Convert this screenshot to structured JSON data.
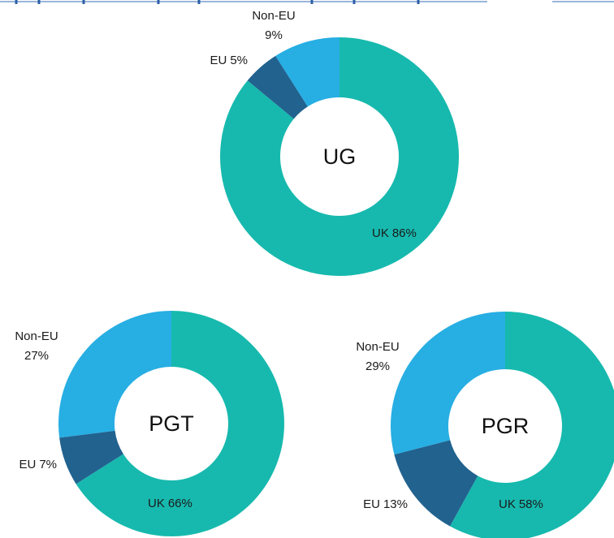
{
  "chart_data": [
    {
      "type": "donut",
      "title": "UG",
      "categories": [
        "UK",
        "EU",
        "Non-EU"
      ],
      "values": [
        86,
        5,
        9
      ],
      "value_labels": [
        "86%",
        "5%",
        "9%"
      ],
      "colors": [
        "#17b9ae",
        "#21628f",
        "#27aee3"
      ]
    },
    {
      "type": "donut",
      "title": "PGT",
      "categories": [
        "UK",
        "EU",
        "Non-EU"
      ],
      "values": [
        66,
        7,
        27
      ],
      "value_labels": [
        "66%",
        "7%",
        "27%"
      ],
      "colors": [
        "#17b9ae",
        "#21628f",
        "#27aee3"
      ]
    },
    {
      "type": "donut",
      "title": "PGR",
      "categories": [
        "UK",
        "EU",
        "Non-EU"
      ],
      "values": [
        58,
        13,
        29
      ],
      "value_labels": [
        "58%",
        "13%",
        "29%"
      ],
      "colors": [
        "#17b9ae",
        "#21628f",
        "#27aee3"
      ]
    }
  ]
}
